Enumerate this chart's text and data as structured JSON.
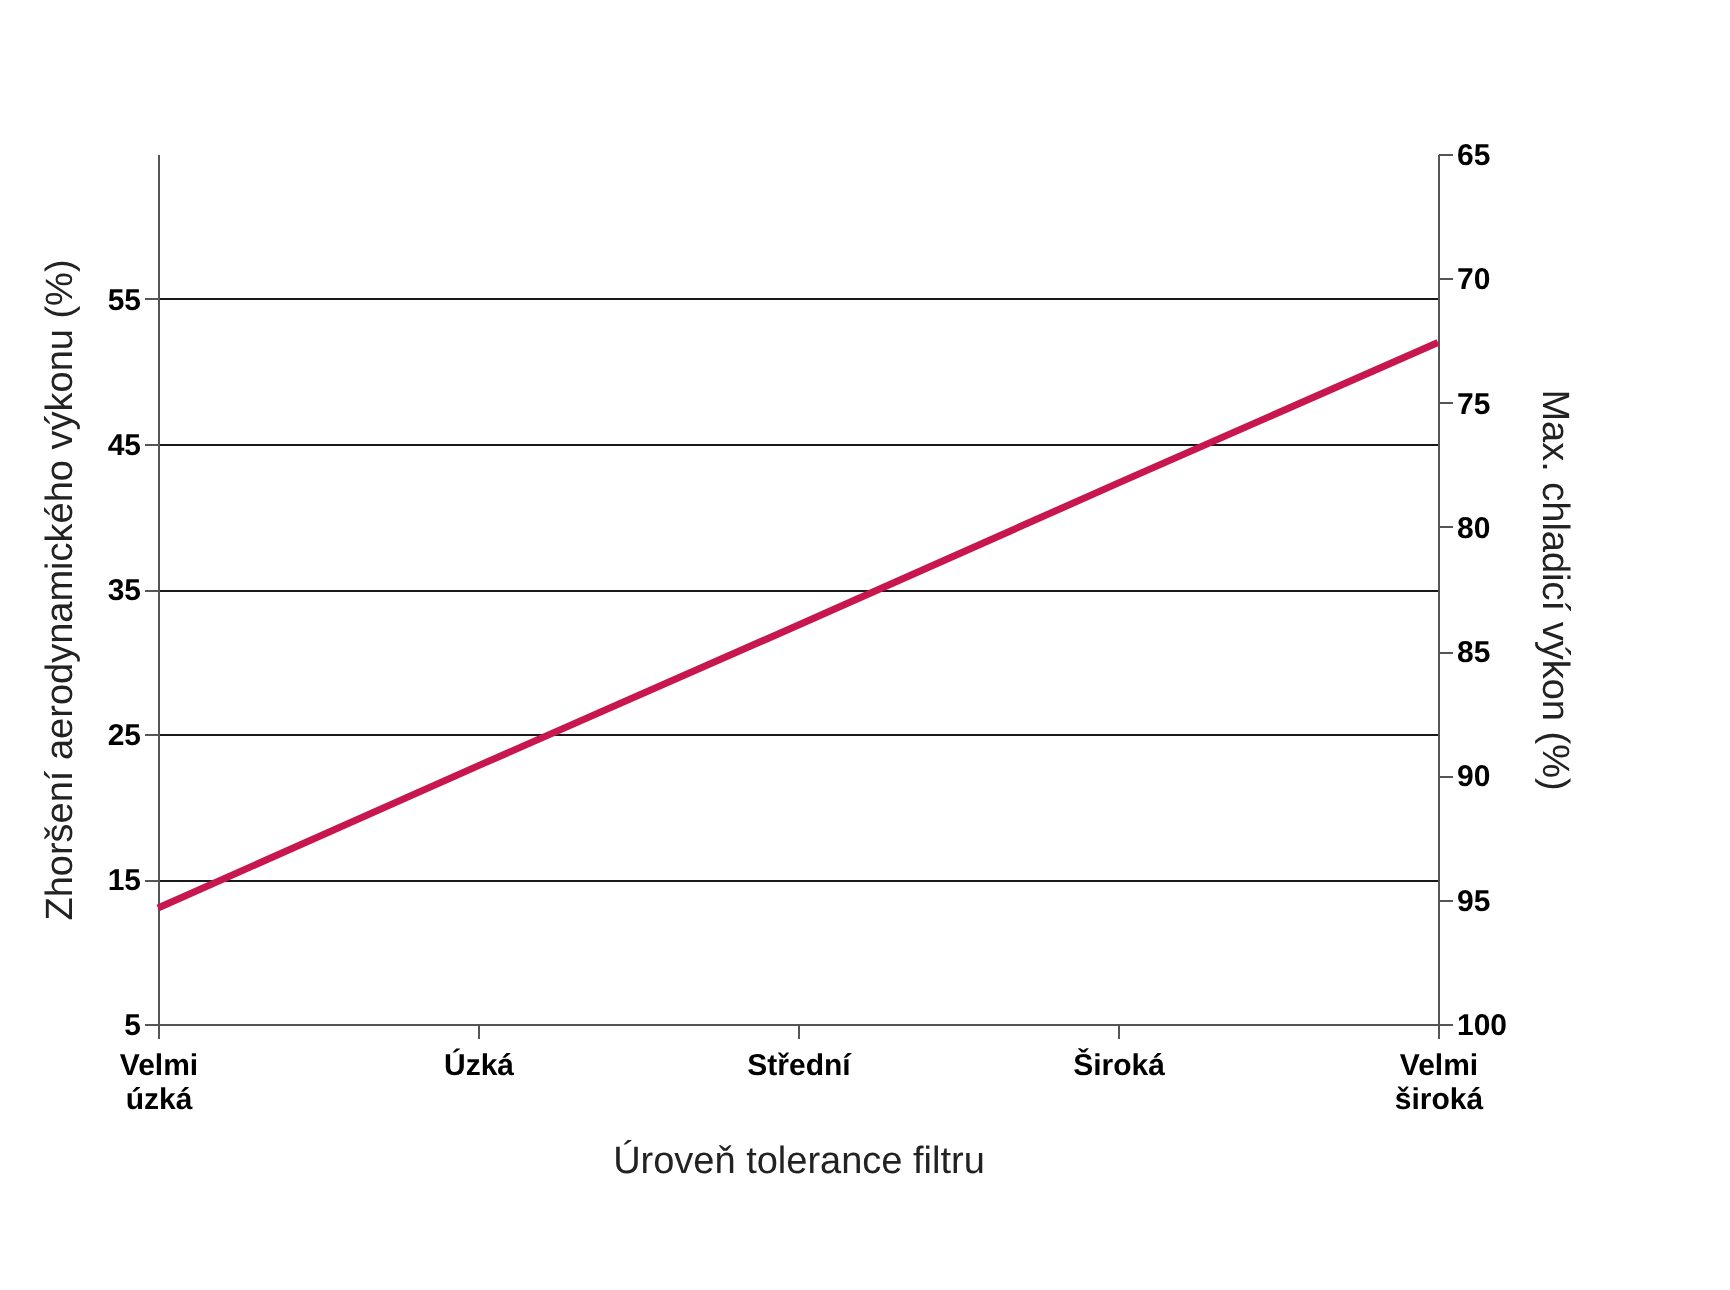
{
  "chart_data": {
    "type": "line",
    "xlabel": "Úroveň tolerance filtru",
    "ylabel": "Zhoršení aerodynamického výkonu (%)",
    "y2label": "Max. chladicí výkon (%)",
    "categories": [
      "Velmi úzká",
      "Úzká",
      "Střední",
      "Široká",
      "Velmi široká"
    ],
    "series": [
      {
        "color": "#c8164f",
        "values": [
          13,
          22.8,
          32.5,
          42.3,
          52
        ]
      }
    ],
    "ylim": [
      5,
      65
    ],
    "yticks": [
      5,
      15,
      25,
      35,
      45,
      55
    ],
    "y2lim": [
      100,
      65
    ],
    "y2ticks": [
      65,
      70,
      75,
      80,
      85,
      90,
      95,
      100
    ],
    "grid": "y",
    "marker": "none",
    "line_style": "solid"
  }
}
